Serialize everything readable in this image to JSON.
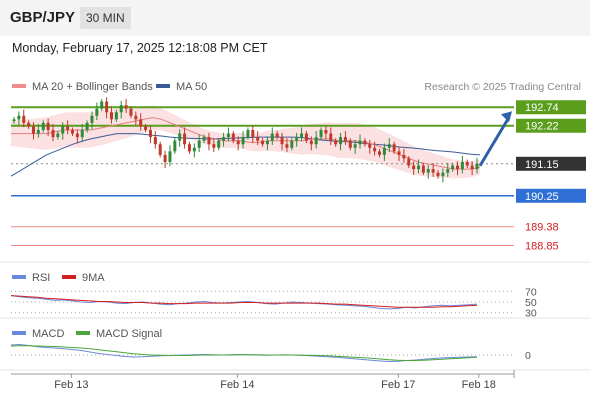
{
  "header": {
    "symbol": "GBP/JPY",
    "timeframe": "30 MIN",
    "datetime": "Monday, February 17, 2025 12:18:08 PM CET"
  },
  "chart_data": {
    "type": "line",
    "main": {
      "legend": [
        {
          "label": "MA 20 + Bollinger Bands",
          "color": "#f28b8b"
        },
        {
          "label": "MA 50",
          "color": "#3a5a99"
        }
      ],
      "source": "Research © 2025 Trading Central",
      "ylim": [
        188.5,
        193.0
      ],
      "last_price": 191.15,
      "levels": [
        {
          "value": 192.74,
          "label": "192.74",
          "color": "#5a9e1c",
          "kind": "resistance"
        },
        {
          "value": 192.22,
          "label": "192.22",
          "color": "#5a9e1c",
          "kind": "resistance"
        },
        {
          "value": 191.15,
          "label": "191.15",
          "color": "#333333",
          "kind": "last"
        },
        {
          "value": 190.25,
          "label": "190.25",
          "color": "#2f6fd6",
          "kind": "pivot"
        },
        {
          "value": 189.38,
          "label": "189.38",
          "color": "#e23b3b",
          "kind": "support"
        },
        {
          "value": 188.85,
          "label": "188.85",
          "color": "#e23b3b",
          "kind": "support"
        }
      ],
      "arrow": {
        "from": 191.15,
        "to": 192.74,
        "color": "#2f5fa8"
      },
      "candles_close": [
        192.4,
        192.5,
        192.3,
        192.2,
        192.0,
        192.1,
        192.3,
        192.1,
        191.9,
        192.0,
        192.2,
        192.1,
        192.0,
        191.9,
        192.1,
        192.3,
        192.5,
        192.7,
        192.9,
        192.6,
        192.4,
        192.6,
        192.8,
        192.7,
        192.5,
        192.4,
        192.2,
        192.1,
        191.9,
        191.7,
        191.4,
        191.2,
        191.5,
        191.8,
        192.0,
        191.7,
        191.5,
        191.6,
        191.8,
        191.9,
        191.7,
        191.6,
        191.8,
        191.9,
        192.0,
        191.8,
        191.7,
        191.9,
        192.1,
        191.9,
        191.8,
        191.7,
        191.8,
        192.0,
        191.9,
        191.7,
        191.6,
        191.8,
        191.9,
        192.0,
        191.8,
        191.7,
        191.9,
        192.1,
        192.0,
        191.8,
        191.7,
        191.9,
        191.8,
        191.6,
        191.7,
        191.8,
        191.7,
        191.6,
        191.5,
        191.4,
        191.6,
        191.7,
        191.5,
        191.4,
        191.3,
        191.1,
        191.0,
        191.1,
        190.9,
        191.0,
        190.9,
        190.8,
        190.9,
        191.0,
        191.1,
        191.0,
        191.2,
        191.1,
        191.0,
        191.15
      ],
      "ma20": [
        192.0,
        192.0,
        192.0,
        192.0,
        192.0,
        192.05,
        192.1,
        192.1,
        192.1,
        192.1,
        192.15,
        192.2,
        192.25,
        192.3,
        192.35,
        192.4,
        192.45,
        192.4,
        192.3,
        192.2,
        192.1,
        192.0,
        191.9,
        191.85,
        191.8,
        191.8,
        191.8,
        191.75,
        191.75,
        191.8,
        191.8,
        191.8,
        191.8,
        191.8,
        191.85,
        191.85,
        191.85,
        191.8,
        191.8,
        191.8,
        191.75,
        191.7,
        191.6,
        191.5,
        191.4,
        191.3,
        191.2,
        191.15,
        191.1,
        191.05,
        191.0,
        191.0,
        191.0,
        191.05
      ],
      "ma50": [
        190.8,
        190.95,
        191.1,
        191.25,
        191.4,
        191.5,
        191.6,
        191.7,
        191.78,
        191.85,
        191.9,
        191.95,
        192.0,
        192.0,
        192.0,
        191.98,
        191.95,
        191.93,
        191.9,
        191.88,
        191.87,
        191.86,
        191.85,
        191.85,
        191.86,
        191.87,
        191.88,
        191.89,
        191.9,
        191.9,
        191.9,
        191.9,
        191.9,
        191.88,
        191.85,
        191.82,
        191.8,
        191.78,
        191.77,
        191.75,
        191.72,
        191.7,
        191.68,
        191.65,
        191.62,
        191.6,
        191.58,
        191.55,
        191.52,
        191.5,
        191.48,
        191.45,
        191.42,
        191.4
      ]
    },
    "rsi": {
      "legend": [
        {
          "label": "RSI",
          "color": "#6b88d8"
        },
        {
          "label": "9MA",
          "color": "#d21f1f"
        }
      ],
      "ylim": [
        20,
        80
      ],
      "ticks": [
        "70",
        "50",
        "30"
      ],
      "rsi": [
        62,
        60,
        58,
        57,
        55,
        53,
        54,
        52,
        50,
        49,
        51,
        50,
        48,
        47,
        49,
        50,
        48,
        46,
        45,
        47,
        48,
        50,
        51,
        49,
        48,
        49,
        50,
        51,
        49,
        47,
        46,
        48,
        50,
        49,
        48,
        47,
        46,
        45,
        44,
        43,
        42,
        40,
        38,
        37,
        38,
        40,
        39,
        41,
        43,
        44,
        43,
        44,
        45,
        46
      ],
      "ma9": [
        62,
        61,
        60,
        59,
        57,
        56,
        55,
        54,
        53,
        52,
        51,
        51,
        50,
        49,
        49,
        49,
        48,
        48,
        47,
        47,
        47,
        48,
        48,
        48,
        48,
        48,
        49,
        49,
        49,
        48,
        48,
        48,
        48,
        48,
        48,
        48,
        47,
        46,
        46,
        45,
        44,
        43,
        42,
        41,
        40,
        40,
        40,
        40,
        40,
        41,
        41,
        42,
        43,
        44
      ]
    },
    "macd": {
      "legend": [
        {
          "label": "MACD",
          "color": "#6b88d8"
        },
        {
          "label": "MACD Signal",
          "color": "#4aa63a"
        }
      ],
      "ylim": [
        -0.6,
        0.6
      ],
      "ticks": [
        "0"
      ],
      "macd": [
        0.4,
        0.42,
        0.38,
        0.33,
        0.3,
        0.28,
        0.25,
        0.22,
        0.18,
        0.12,
        0.06,
        0.02,
        -0.02,
        -0.06,
        -0.08,
        -0.07,
        -0.05,
        -0.03,
        -0.02,
        -0.01,
        0.0,
        0.01,
        0.02,
        0.01,
        0.0,
        0.01,
        0.02,
        0.01,
        0.0,
        -0.01,
        0.0,
        0.01,
        0.0,
        -0.01,
        -0.03,
        -0.05,
        -0.07,
        -0.09,
        -0.12,
        -0.15,
        -0.18,
        -0.21,
        -0.24,
        -0.26,
        -0.25,
        -0.22,
        -0.2,
        -0.17,
        -0.14,
        -0.12,
        -0.1,
        -0.09,
        -0.08,
        -0.07
      ],
      "signal": [
        0.36,
        0.37,
        0.37,
        0.36,
        0.35,
        0.34,
        0.32,
        0.3,
        0.28,
        0.25,
        0.21,
        0.17,
        0.13,
        0.09,
        0.05,
        0.02,
        0.0,
        -0.01,
        -0.02,
        -0.02,
        -0.02,
        -0.01,
        0.0,
        0.0,
        0.0,
        0.0,
        0.01,
        0.01,
        0.01,
        0.0,
        0.0,
        0.0,
        0.0,
        -0.01,
        -0.01,
        -0.02,
        -0.03,
        -0.05,
        -0.07,
        -0.09,
        -0.11,
        -0.13,
        -0.16,
        -0.19,
        -0.21,
        -0.22,
        -0.22,
        -0.21,
        -0.19,
        -0.17,
        -0.15,
        -0.13,
        -0.11,
        -0.09
      ]
    },
    "x_ticks": [
      {
        "label": "Feb 13",
        "pos": 0.12
      },
      {
        "label": "Feb 14",
        "pos": 0.45
      },
      {
        "label": "Feb 17",
        "pos": 0.77
      },
      {
        "label": "Feb 18",
        "pos": 0.93
      }
    ]
  }
}
